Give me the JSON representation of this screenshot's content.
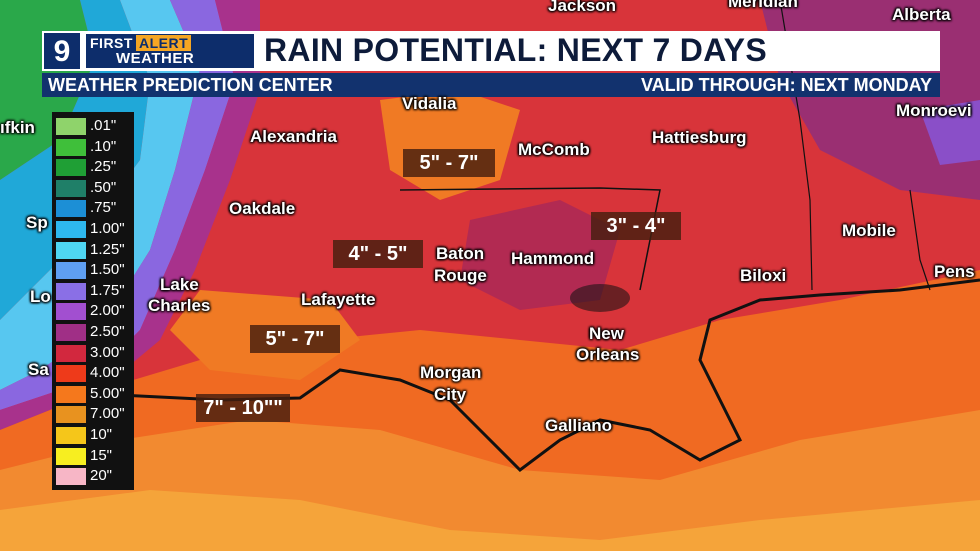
{
  "header": {
    "logo_number": "9",
    "brand_top": "FIRST",
    "brand_badge": "ALERT",
    "brand_bottom": "WEATHER",
    "title": "RAIN POTENTIAL: NEXT 7 DAYS",
    "source": "WEATHER PREDICTION CENTER",
    "valid": "VALID THROUGH: NEXT MONDAY"
  },
  "legend": [
    {
      "label": ".01\"",
      "color": "#8fd36b"
    },
    {
      "label": ".10\"",
      "color": "#3fbf3a"
    },
    {
      "label": ".25\"",
      "color": "#1f9f35"
    },
    {
      "label": ".50\"",
      "color": "#1f7f68"
    },
    {
      "label": ".75\"",
      "color": "#1c8fd6"
    },
    {
      "label": "1.00\"",
      "color": "#2eb8ee"
    },
    {
      "label": "1.25\"",
      "color": "#4fd6f2"
    },
    {
      "label": "1.50\"",
      "color": "#5f9ff2"
    },
    {
      "label": "1.75\"",
      "color": "#8a6fe6"
    },
    {
      "label": "2.00\"",
      "color": "#a24fd0"
    },
    {
      "label": "2.50\"",
      "color": "#a02f86"
    },
    {
      "label": "3.00\"",
      "color": "#d2283e"
    },
    {
      "label": "4.00\"",
      "color": "#ee3a1a"
    },
    {
      "label": "5.00\"",
      "color": "#f5781c"
    },
    {
      "label": "7.00\"",
      "color": "#e8921f"
    },
    {
      "label": "10\"",
      "color": "#f5c61a"
    },
    {
      "label": "15\"",
      "color": "#f7ee20"
    },
    {
      "label": "20\"",
      "color": "#f7b6c6"
    }
  ],
  "cities": {
    "jackson": "Jackson",
    "meridian": "Meridian",
    "alberta": "Alberta",
    "vidalia": "Vidalia",
    "alexandria": "Alexandria",
    "mccomb": "McComb",
    "hattiesburg": "Hattiesburg",
    "monroeville": "Monroevi",
    "lufkin": "ıfkin",
    "oakdale": "Oakdale",
    "baton_rouge_1": "Baton",
    "baton_rouge_2": "Rouge",
    "hammond": "Hammond",
    "mobile": "Mobile",
    "spr": "Sp",
    "lake_charles_1": "Lake",
    "lake_charles_2": "Charles",
    "lafayette": "Lafayette",
    "biloxi": "Biloxi",
    "pensacola": "Pens",
    "lo": "Lo",
    "new_orleans_1": "New",
    "new_orleans_2": "Orleans",
    "sa": "Sa",
    "morgan_city_1": "Morgan",
    "morgan_city_2": "City",
    "galliano": "Galliano"
  },
  "rain_totals": {
    "box1": "5\" - 7\"",
    "box2": "3\" - 4\"",
    "box3": "4\" - 5\"",
    "box4": "5\" - 7\"",
    "box5": "7\" - 10\"\""
  }
}
